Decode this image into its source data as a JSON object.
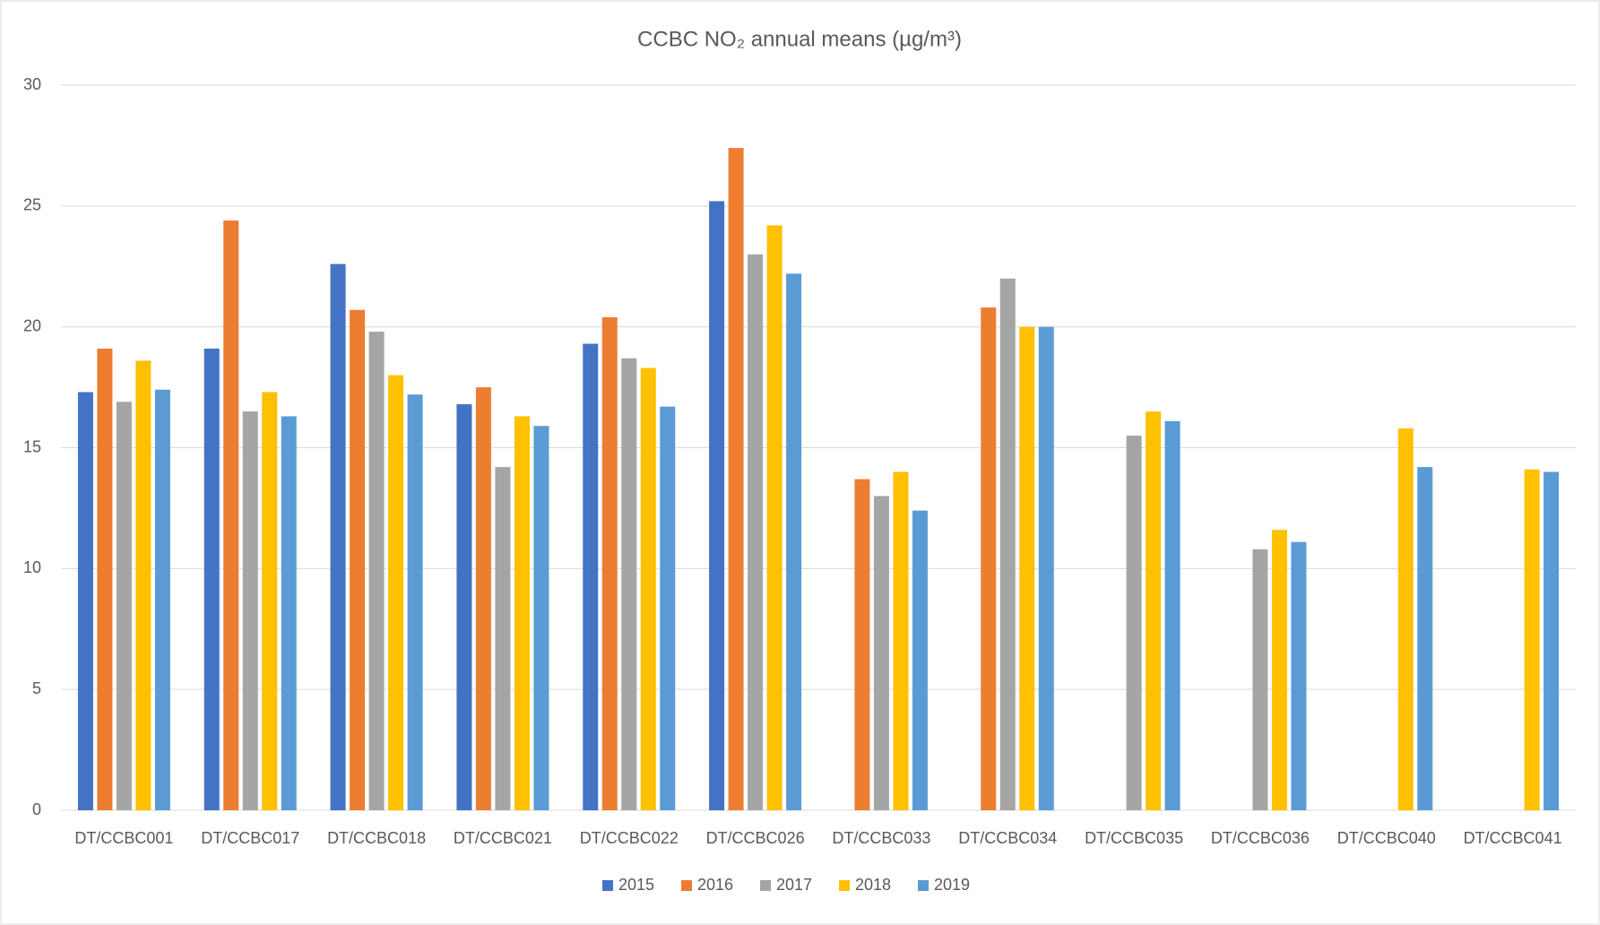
{
  "chart_data": {
    "type": "bar",
    "title": "CCBC NO₂ annual means (µg/m³)",
    "categories": [
      "DT/CCBC001",
      "DT/CCBC017",
      "DT/CCBC018",
      "DT/CCBC021",
      "DT/CCBC022",
      "DT/CCBC026",
      "DT/CCBC033",
      "DT/CCBC034",
      "DT/CCBC035",
      "DT/CCBC036",
      "DT/CCBC040",
      "DT/CCBC041"
    ],
    "series": [
      {
        "name": "2015",
        "color": "#4472c4",
        "values": [
          17.3,
          19.1,
          22.6,
          16.8,
          19.3,
          25.2,
          null,
          null,
          null,
          null,
          null,
          null
        ]
      },
      {
        "name": "2016",
        "color": "#ed7d31",
        "values": [
          19.1,
          24.4,
          20.7,
          17.5,
          20.4,
          27.4,
          13.7,
          20.8,
          null,
          null,
          null,
          null
        ]
      },
      {
        "name": "2017",
        "color": "#a5a5a5",
        "values": [
          16.9,
          16.5,
          19.8,
          14.2,
          18.7,
          23.0,
          13.0,
          22.0,
          15.5,
          10.8,
          null,
          null
        ]
      },
      {
        "name": "2018",
        "color": "#ffc000",
        "values": [
          18.6,
          17.3,
          18.0,
          16.3,
          18.3,
          24.2,
          14.0,
          20.0,
          16.5,
          11.6,
          15.8,
          14.1
        ]
      },
      {
        "name": "2019",
        "color": "#5b9bd5",
        "values": [
          17.4,
          16.3,
          17.2,
          15.9,
          16.7,
          22.2,
          12.4,
          20.0,
          16.1,
          11.1,
          14.2,
          14.0
        ]
      }
    ],
    "ylim": [
      0,
      30
    ],
    "yticks": [
      0,
      5,
      10,
      15,
      20,
      25,
      30
    ],
    "grid": true,
    "legend": "bottom"
  }
}
